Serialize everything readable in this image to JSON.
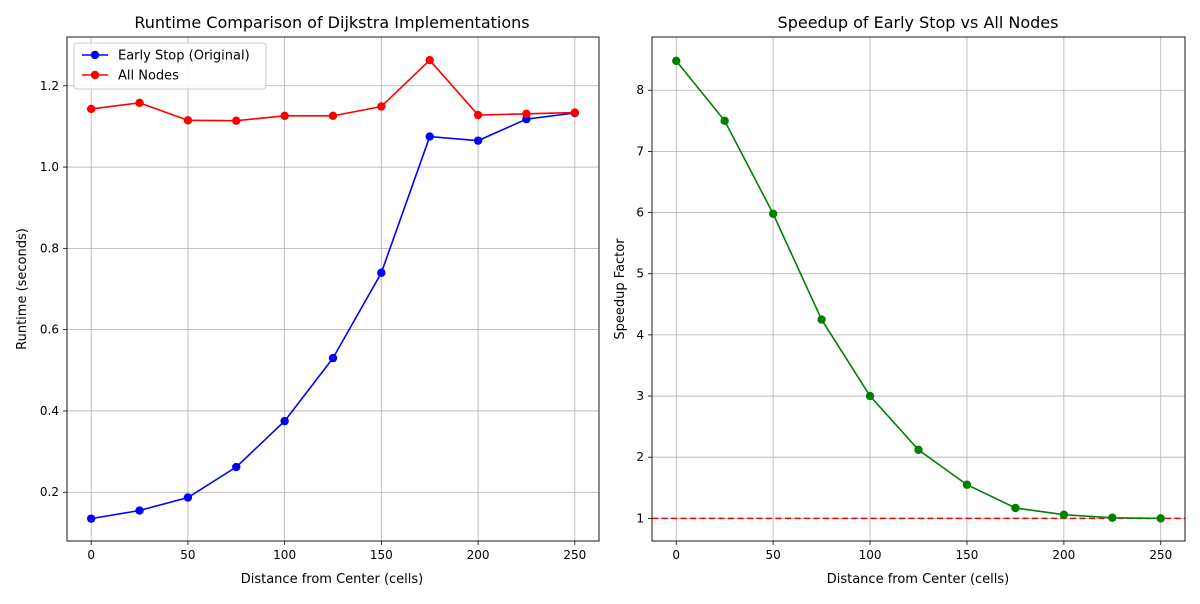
{
  "chart_data": [
    {
      "type": "line",
      "title": "Runtime Comparison of Dijkstra Implementations",
      "xlabel": "Distance from Center (cells)",
      "ylabel": "Runtime (seconds)",
      "xlim": [
        -12.5,
        262.5
      ],
      "ylim": [
        0.08,
        1.32
      ],
      "xticks": [
        0,
        50,
        100,
        150,
        200,
        250
      ],
      "yticks": [
        0.2,
        0.4,
        0.6,
        0.8,
        1.0,
        1.2
      ],
      "ytick_labels": [
        "0.2",
        "0.4",
        "0.6",
        "0.8",
        "1.0",
        "1.2"
      ],
      "grid": true,
      "legend_position": "top-left",
      "x": [
        0,
        25,
        50,
        75,
        100,
        125,
        150,
        175,
        200,
        225,
        250
      ],
      "series": [
        {
          "name": "Early Stop (Original)",
          "color": "#0000ff",
          "marker": "circle",
          "values": [
            0.135,
            0.155,
            0.187,
            0.262,
            0.375,
            0.53,
            0.74,
            1.075,
            1.065,
            1.118,
            1.133
          ]
        },
        {
          "name": "All Nodes",
          "color": "#ff0000",
          "marker": "circle",
          "values": [
            1.143,
            1.158,
            1.115,
            1.114,
            1.126,
            1.126,
            1.149,
            1.263,
            1.128,
            1.131,
            1.134
          ]
        }
      ]
    },
    {
      "type": "line",
      "title": "Speedup of Early Stop vs All Nodes",
      "xlabel": "Distance from Center (cells)",
      "ylabel": "Speedup Factor",
      "xlim": [
        -12.5,
        262.5
      ],
      "ylim": [
        0.63,
        8.87
      ],
      "xticks": [
        0,
        50,
        100,
        150,
        200,
        250
      ],
      "yticks": [
        1,
        2,
        3,
        4,
        5,
        6,
        7,
        8
      ],
      "ytick_labels": [
        "1",
        "2",
        "3",
        "4",
        "5",
        "6",
        "7",
        "8"
      ],
      "grid": true,
      "x": [
        0,
        25,
        50,
        75,
        100,
        125,
        150,
        175,
        200,
        225,
        250
      ],
      "series": [
        {
          "color": "#008000",
          "marker": "circle",
          "values": [
            8.48,
            7.5,
            5.98,
            4.25,
            3.0,
            2.12,
            1.55,
            1.17,
            1.06,
            1.01,
            1.0
          ]
        }
      ],
      "reference_line": {
        "y": 1.0,
        "color": "#ff0000",
        "style": "dashed"
      }
    }
  ]
}
